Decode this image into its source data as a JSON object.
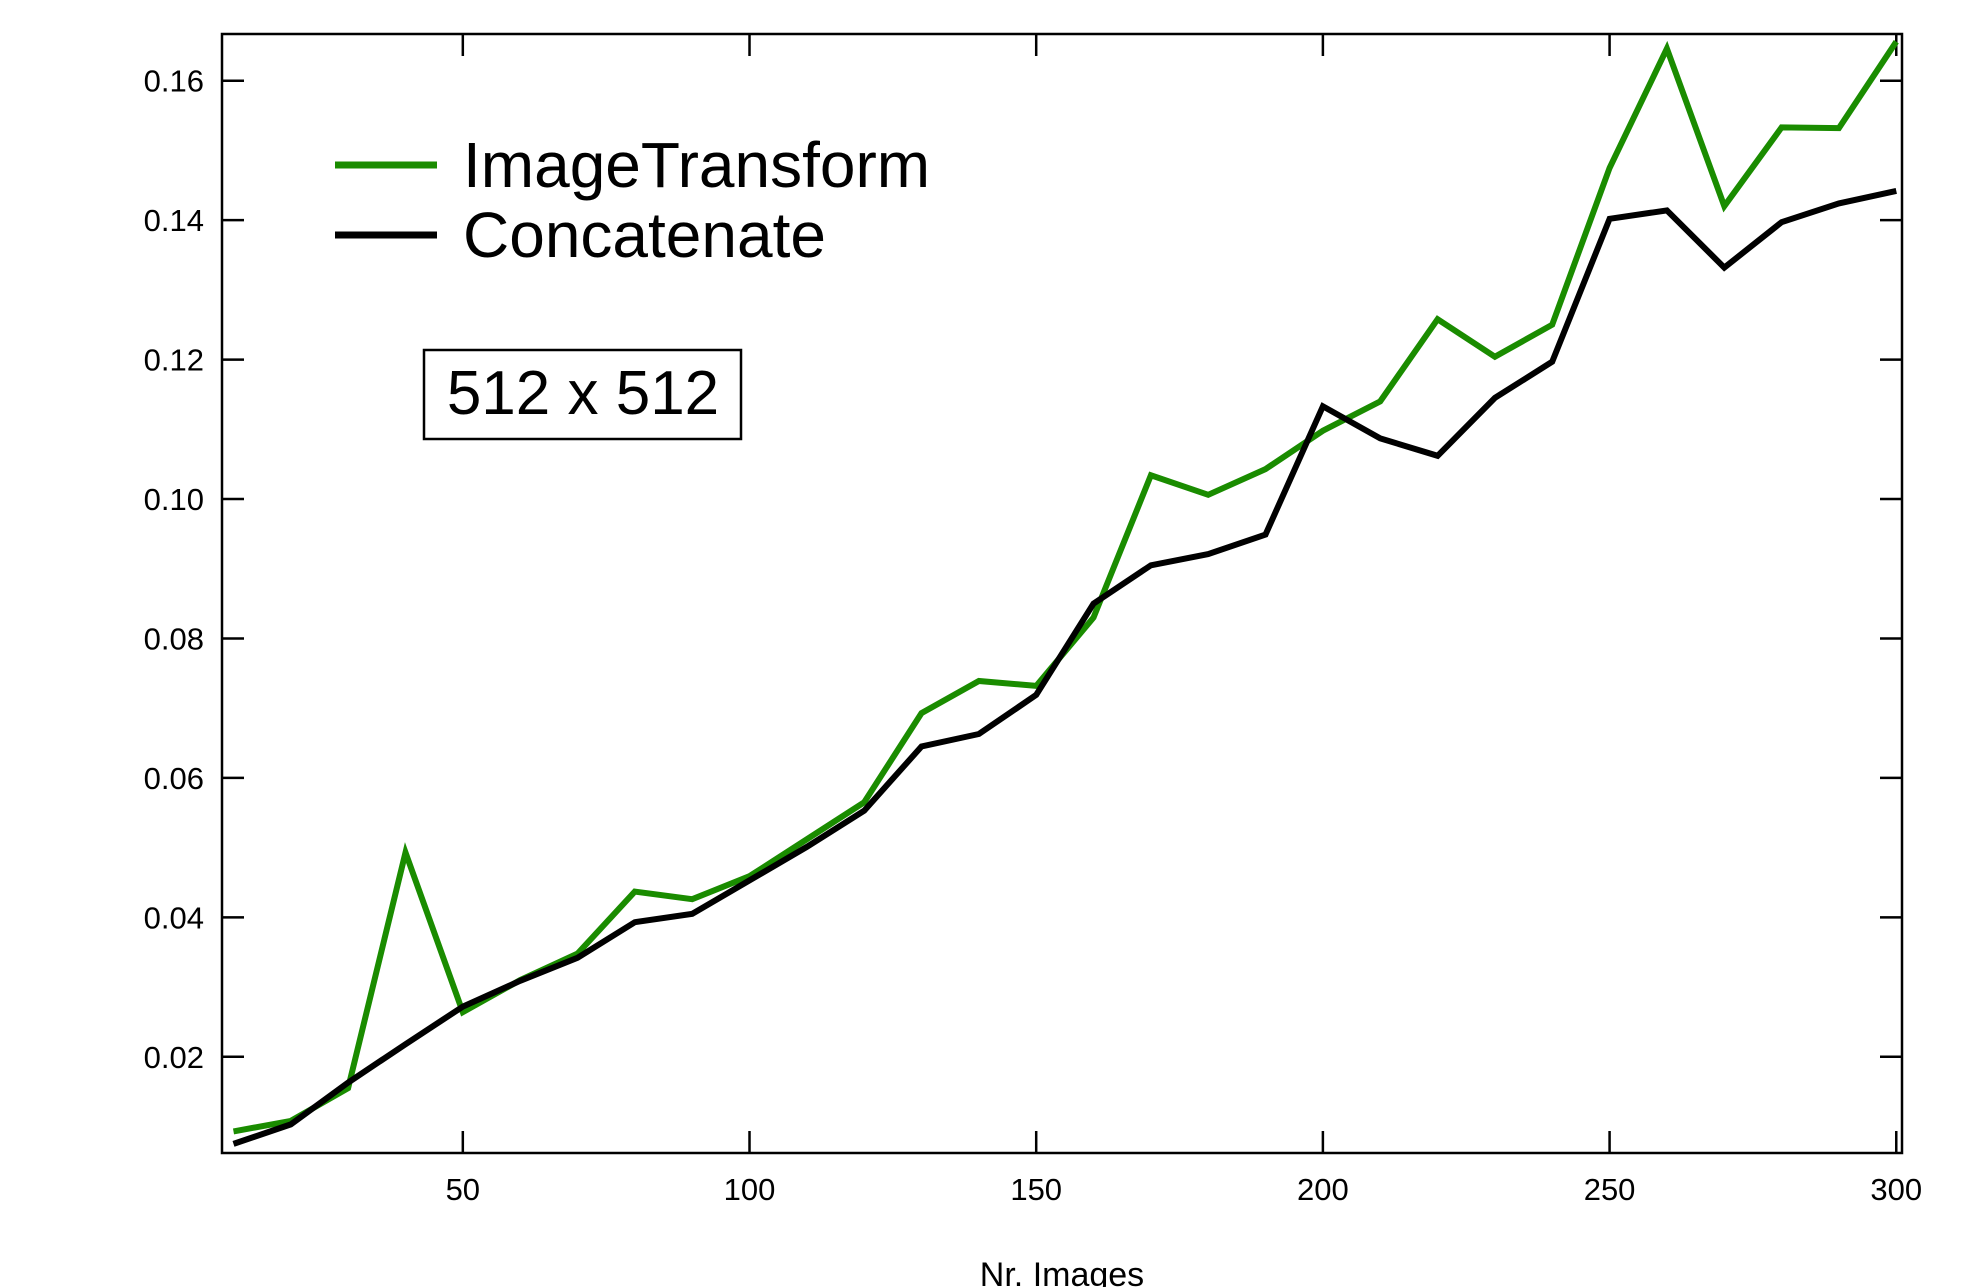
{
  "chart_data": {
    "type": "line",
    "title": "",
    "xlabel": "Nr. Images",
    "ylabel": "",
    "xlim": [
      8,
      301
    ],
    "ylim": [
      0.0062,
      0.1667
    ],
    "xticks": [
      50,
      100,
      150,
      200,
      250,
      300
    ],
    "xtick_labels": [
      "50",
      "100",
      "150",
      "200",
      "250",
      "300"
    ],
    "yticks": [
      0.02,
      0.04,
      0.06,
      0.08,
      0.1,
      0.12,
      0.14,
      0.16
    ],
    "ytick_labels": [
      "0.02",
      "0.04",
      "0.06",
      "0.08",
      "0.10",
      "0.12",
      "0.14",
      "0.16"
    ],
    "grid": false,
    "legend_position": "top-left",
    "annotation": "512 x 512",
    "x": [
      10,
      20,
      30,
      40,
      50,
      60,
      70,
      80,
      90,
      100,
      110,
      120,
      130,
      140,
      150,
      160,
      170,
      180,
      190,
      200,
      210,
      220,
      230,
      240,
      250,
      260,
      270,
      280,
      290,
      300
    ],
    "series": [
      {
        "name": "ImageTransform",
        "color": "#1a8c00",
        "values": [
          0.0093,
          0.0108,
          0.0155,
          0.0493,
          0.0264,
          0.031,
          0.0348,
          0.0437,
          0.0426,
          0.0459,
          0.0512,
          0.0565,
          0.0693,
          0.0739,
          0.0732,
          0.083,
          0.1034,
          0.1006,
          0.1043,
          0.1098,
          0.114,
          0.1258,
          0.1204,
          0.125,
          0.1475,
          0.1646,
          0.142,
          0.1533,
          0.1532,
          0.1656
        ]
      },
      {
        "name": "Concatenate",
        "color": "#000000",
        "values": [
          0.0075,
          0.0103,
          0.0163,
          0.0218,
          0.0272,
          0.0309,
          0.0342,
          0.0393,
          0.0405,
          0.0453,
          0.0501,
          0.0553,
          0.0645,
          0.0663,
          0.0719,
          0.085,
          0.0905,
          0.0921,
          0.0949,
          0.1133,
          0.1087,
          0.1062,
          0.1145,
          0.1197,
          0.1402,
          0.1414,
          0.1332,
          0.1397,
          0.1424,
          0.1442
        ]
      }
    ]
  }
}
